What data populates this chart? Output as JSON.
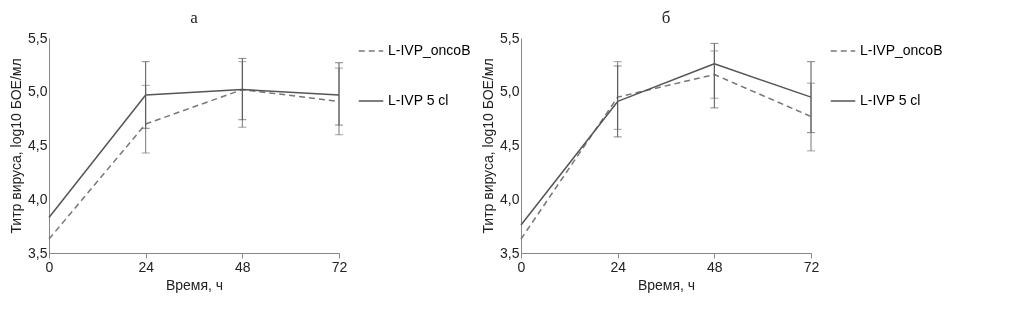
{
  "chart_data": [
    {
      "type": "line",
      "title": "а",
      "xlabel": "Время, ч",
      "ylabel": "Титр вируса, log10 БОЕ/мл",
      "x": [
        0,
        24,
        48,
        72
      ],
      "xlim": [
        0,
        72
      ],
      "xticks": [
        0,
        24,
        48,
        72
      ],
      "ylim": [
        3.5,
        5.5
      ],
      "yticks": [
        {
          "value": 3.5,
          "label": "3,5"
        },
        {
          "value": 4.0,
          "label": "4,0"
        },
        {
          "value": 4.5,
          "label": "4,5"
        },
        {
          "value": 5.0,
          "label": "5,0"
        },
        {
          "value": 5.5,
          "label": "5,5"
        }
      ],
      "grid": false,
      "legend": "right",
      "series": [
        {
          "name": "L-IVP_oncoB",
          "color": "#777777",
          "line_style": "dashed",
          "values": [
            3.63,
            4.7,
            5.02,
            4.91
          ],
          "errors": [
            null,
            [
              4.43,
              5.06
            ],
            [
              4.67,
              5.28
            ],
            [
              4.6,
              5.22
            ]
          ]
        },
        {
          "name": "L-IVP 5 cl",
          "color": "#555555",
          "line_style": "solid",
          "values": [
            3.83,
            4.97,
            5.02,
            4.97
          ],
          "errors": [
            null,
            [
              4.66,
              5.28
            ],
            [
              4.74,
              5.31
            ],
            [
              4.69,
              5.27
            ]
          ]
        }
      ]
    },
    {
      "type": "line",
      "title": "б",
      "xlabel": "Время, ч",
      "ylabel": "Титр вируса, log10 БОЕ/мл",
      "x": [
        0,
        24,
        48,
        72
      ],
      "xlim": [
        0,
        72
      ],
      "xticks": [
        0,
        24,
        48,
        72
      ],
      "ylim": [
        3.5,
        5.5
      ],
      "yticks": [
        {
          "value": 3.5,
          "label": "3,5"
        },
        {
          "value": 4.0,
          "label": "4,0"
        },
        {
          "value": 4.5,
          "label": "4,5"
        },
        {
          "value": 5.0,
          "label": "5,0"
        },
        {
          "value": 5.5,
          "label": "5,5"
        }
      ],
      "grid": false,
      "legend": "right",
      "series": [
        {
          "name": "L-IVP_oncoB",
          "color": "#777777",
          "line_style": "dashed",
          "values": [
            3.63,
            4.95,
            5.16,
            4.77
          ],
          "errors": [
            null,
            [
              4.65,
              5.28
            ],
            [
              4.94,
              5.38
            ],
            [
              4.45,
              5.08
            ]
          ]
        },
        {
          "name": "L-IVP 5 cl",
          "color": "#555555",
          "line_style": "solid",
          "values": [
            3.76,
            4.91,
            5.26,
            4.95
          ],
          "errors": [
            null,
            [
              4.58,
              5.24
            ],
            [
              4.85,
              5.45
            ],
            [
              4.62,
              5.28
            ]
          ]
        }
      ]
    }
  ]
}
